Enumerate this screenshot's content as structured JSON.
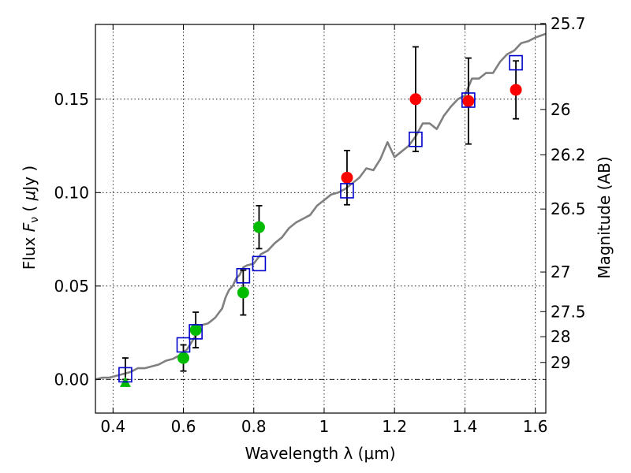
{
  "chart_data": {
    "type": "scatter",
    "xlabel": "Wavelength  λ (μm)",
    "ylabel": "Flux  F_ν  ( μJy )",
    "y2label": "Magnitude (AB)",
    "xlim": [
      0.35,
      1.63
    ],
    "ylim": [
      -0.018,
      0.19
    ],
    "grid": true,
    "x_ticks": [
      0.4,
      0.6,
      0.8,
      1.0,
      1.2,
      1.4,
      1.6
    ],
    "x_tick_labels": [
      "0.4",
      "0.6",
      "0.8",
      "1",
      "1.2",
      "1.4",
      "1.6"
    ],
    "y_ticks": [
      0.0,
      0.05,
      0.1,
      0.15
    ],
    "y_tick_labels": [
      "0.00",
      "0.05",
      "0.10",
      "0.15"
    ],
    "y2_ticks": [
      {
        "label": "25.7",
        "flux": 0.1905
      },
      {
        "label": "26",
        "flux": 0.1445
      },
      {
        "label": "26.2",
        "flux": 0.1202
      },
      {
        "label": "26.5",
        "flux": 0.0912
      },
      {
        "label": "27",
        "flux": 0.0575
      },
      {
        "label": "27.5",
        "flux": 0.0363
      },
      {
        "label": "28",
        "flux": 0.0229
      },
      {
        "label": "29",
        "flux": 0.0091
      }
    ],
    "colors": {
      "model": "#808080",
      "green": "#00bb00",
      "red": "#ff0000",
      "square": "#0000cc",
      "errorbar": "#000000"
    },
    "model_spectrum": {
      "x": [
        0.35,
        0.37,
        0.39,
        0.41,
        0.43,
        0.45,
        0.47,
        0.49,
        0.51,
        0.53,
        0.55,
        0.57,
        0.59,
        0.61,
        0.63,
        0.65,
        0.67,
        0.69,
        0.71,
        0.72,
        0.73,
        0.74,
        0.75,
        0.76,
        0.77,
        0.78,
        0.8,
        0.82,
        0.84,
        0.86,
        0.88,
        0.9,
        0.92,
        0.94,
        0.96,
        0.98,
        1.0,
        1.02,
        1.04,
        1.06,
        1.08,
        1.1,
        1.12,
        1.14,
        1.16,
        1.18,
        1.2,
        1.22,
        1.24,
        1.26,
        1.28,
        1.3,
        1.32,
        1.34,
        1.36,
        1.38,
        1.4,
        1.42,
        1.44,
        1.46,
        1.48,
        1.5,
        1.52,
        1.54,
        1.56,
        1.58,
        1.6,
        1.63
      ],
      "y": [
        0.0,
        0.001,
        0.001,
        0.002,
        0.003,
        0.004,
        0.006,
        0.006,
        0.007,
        0.008,
        0.01,
        0.011,
        0.013,
        0.016,
        0.022,
        0.029,
        0.03,
        0.033,
        0.038,
        0.044,
        0.048,
        0.05,
        0.054,
        0.056,
        0.06,
        0.061,
        0.062,
        0.067,
        0.069,
        0.073,
        0.076,
        0.081,
        0.084,
        0.086,
        0.088,
        0.093,
        0.096,
        0.099,
        0.1,
        0.102,
        0.105,
        0.108,
        0.113,
        0.112,
        0.118,
        0.127,
        0.119,
        0.122,
        0.125,
        0.13,
        0.137,
        0.137,
        0.134,
        0.141,
        0.146,
        0.15,
        0.152,
        0.161,
        0.161,
        0.164,
        0.164,
        0.17,
        0.174,
        0.176,
        0.18,
        0.181,
        0.183,
        0.185
      ]
    },
    "green_points": [
      {
        "x": 0.6,
        "y": 0.0115,
        "err": 0.007
      },
      {
        "x": 0.635,
        "y": 0.0265,
        "err": 0.0095
      },
      {
        "x": 0.77,
        "y": 0.0465,
        "err": 0.012
      },
      {
        "x": 0.815,
        "y": 0.0815,
        "err": 0.0115
      }
    ],
    "green_triangles": [
      {
        "x": 0.435,
        "y": -0.0015
      }
    ],
    "red_points": [
      {
        "x": 1.065,
        "y": 0.108,
        "err": 0.0145
      },
      {
        "x": 1.26,
        "y": 0.15,
        "err": 0.028
      },
      {
        "x": 1.41,
        "y": 0.149,
        "err": 0.023
      },
      {
        "x": 1.545,
        "y": 0.155,
        "err": 0.0155
      }
    ],
    "squares": [
      {
        "x": 0.435,
        "y": 0.0025
      },
      {
        "x": 0.6,
        "y": 0.0185
      },
      {
        "x": 0.635,
        "y": 0.0255
      },
      {
        "x": 0.77,
        "y": 0.0555
      },
      {
        "x": 0.815,
        "y": 0.062
      },
      {
        "x": 1.065,
        "y": 0.101
      },
      {
        "x": 1.26,
        "y": 0.1285
      },
      {
        "x": 1.41,
        "y": 0.1495
      },
      {
        "x": 1.545,
        "y": 0.1695
      }
    ],
    "upper_limit_errorbar": {
      "x": 0.435,
      "y": 0.0,
      "top": 0.0115
    }
  }
}
